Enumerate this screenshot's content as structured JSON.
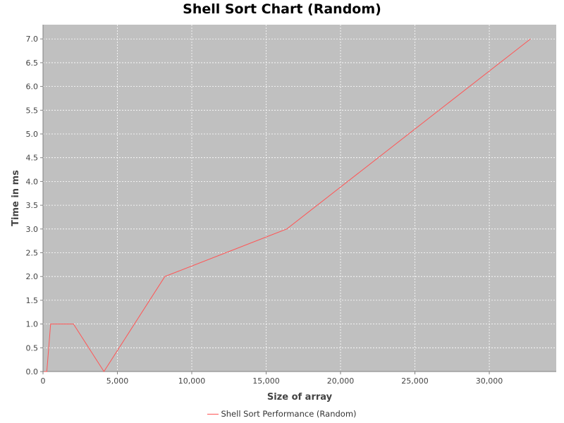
{
  "colors": {
    "plot_background": "#c0c0c0",
    "gridline": "#ffffff",
    "series": "#ff5555"
  },
  "chart_data": {
    "type": "line",
    "title": "Shell Sort Chart (Random)",
    "xlabel": "Size of array",
    "ylabel": "Time in ms",
    "xlim": [
      0,
      34500
    ],
    "ylim": [
      0,
      7.3
    ],
    "xticks": [
      0,
      5000,
      10000,
      15000,
      20000,
      25000,
      30000
    ],
    "xtick_labels": [
      "0",
      "5,000",
      "10,000",
      "15,000",
      "20,000",
      "25,000",
      "30,000"
    ],
    "yticks": [
      0,
      0.5,
      1,
      1.5,
      2,
      2.5,
      3,
      3.5,
      4,
      4.5,
      5,
      5.5,
      6,
      6.5,
      7
    ],
    "ytick_labels": [
      "0.0",
      "0.5",
      "1.0",
      "1.5",
      "2.0",
      "2.5",
      "3.0",
      "3.5",
      "4.0",
      "4.5",
      "5.0",
      "5.5",
      "6.0",
      "6.5",
      "7.0"
    ],
    "grid": true,
    "legend_position": "bottom-center",
    "series": [
      {
        "name": "Shell Sort Performance (Random)",
        "x": [
          64,
          128,
          256,
          512,
          1024,
          2048,
          4096,
          8192,
          16384,
          32768
        ],
        "y": [
          0,
          0,
          0,
          1,
          1,
          1,
          0,
          2,
          3,
          7
        ]
      }
    ]
  }
}
